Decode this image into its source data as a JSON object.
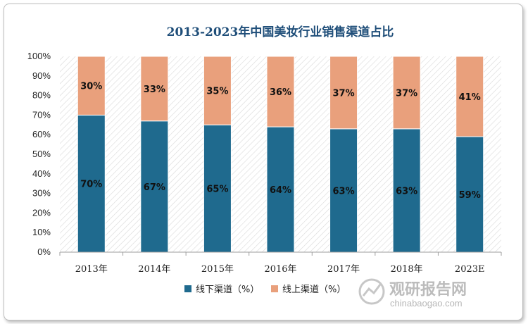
{
  "chart_data": {
    "type": "bar",
    "stacked": true,
    "title": "2013-2023年中国美妆行业销售渠道占比",
    "categories": [
      "2013年",
      "2014年",
      "2015年",
      "2016年",
      "2017年",
      "2018年",
      "2023E"
    ],
    "series": [
      {
        "name": "线下渠道（%）",
        "color": "#1f6a8e",
        "values": [
          70,
          67,
          65,
          64,
          63,
          63,
          59
        ],
        "labels": [
          "70%",
          "67%",
          "65%",
          "64%",
          "63%",
          "63%",
          "59%"
        ]
      },
      {
        "name": "线上渠道（%）",
        "color": "#e9a07c",
        "values": [
          30,
          33,
          35,
          36,
          37,
          37,
          41
        ],
        "labels": [
          "30%",
          "33%",
          "35%",
          "36%",
          "37%",
          "37%",
          "41%"
        ]
      }
    ],
    "yticks": [
      "0%",
      "10%",
      "20%",
      "30%",
      "40%",
      "50%",
      "60%",
      "70%",
      "80%",
      "90%",
      "100%"
    ],
    "ylim": [
      0,
      100
    ],
    "legend_position": "bottom",
    "grid": false
  },
  "watermark": {
    "text": "观研报告网",
    "url": "chinabaogao.com"
  }
}
